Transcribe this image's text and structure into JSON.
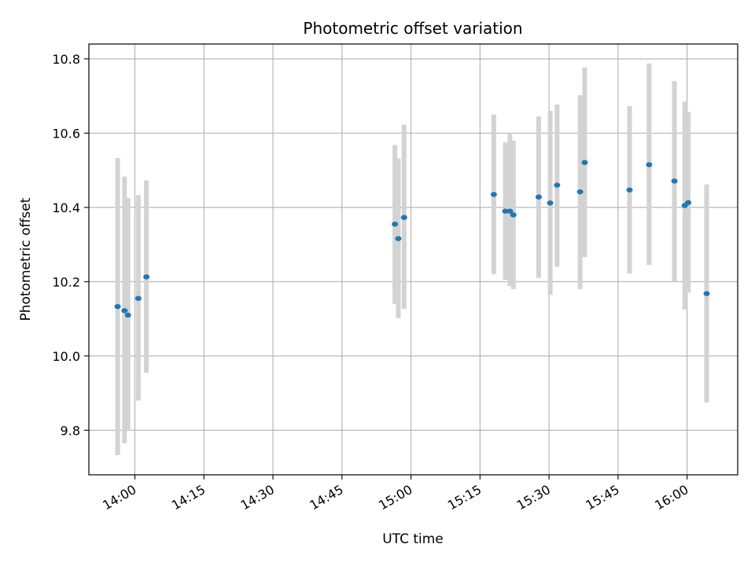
{
  "chart_data": {
    "type": "scatter",
    "title": "Photometric offset variation",
    "xlabel": "UTC time",
    "ylabel": "Photometric offset",
    "x_ticks": [
      "14:00",
      "14:15",
      "14:30",
      "14:45",
      "15:00",
      "15:15",
      "15:30",
      "15:45",
      "16:00"
    ],
    "y_ticks": [
      "9.8",
      "10.0",
      "10.2",
      "10.4",
      "10.6",
      "10.8"
    ],
    "xlim": [
      "13:50",
      "16:11"
    ],
    "ylim": [
      9.68,
      10.84
    ],
    "grid": true,
    "point_color": "#1f77b4",
    "errorbar_color": "#d3d3d3",
    "points": [
      {
        "x": "13:56:15",
        "y": 10.133,
        "err_low": 9.733,
        "err_high": 10.533
      },
      {
        "x": "13:57:45",
        "y": 10.122,
        "err_low": 9.765,
        "err_high": 10.483
      },
      {
        "x": "13:58:30",
        "y": 10.11,
        "err_low": 9.798,
        "err_high": 10.425
      },
      {
        "x": "14:00:45",
        "y": 10.155,
        "err_low": 9.88,
        "err_high": 10.433
      },
      {
        "x": "14:02:30",
        "y": 10.213,
        "err_low": 9.955,
        "err_high": 10.473
      },
      {
        "x": "14:56:30",
        "y": 10.355,
        "err_low": 10.14,
        "err_high": 10.568
      },
      {
        "x": "14:57:15",
        "y": 10.316,
        "err_low": 10.102,
        "err_high": 10.532
      },
      {
        "x": "14:58:30",
        "y": 10.373,
        "err_low": 10.127,
        "err_high": 10.623
      },
      {
        "x": "15:18:00",
        "y": 10.435,
        "err_low": 10.22,
        "err_high": 10.65
      },
      {
        "x": "15:20:30",
        "y": 10.39,
        "err_low": 10.205,
        "err_high": 10.575
      },
      {
        "x": "15:21:30",
        "y": 10.39,
        "err_low": 10.188,
        "err_high": 10.598
      },
      {
        "x": "15:22:15",
        "y": 10.38,
        "err_low": 10.18,
        "err_high": 10.58
      },
      {
        "x": "15:27:45",
        "y": 10.428,
        "err_low": 10.21,
        "err_high": 10.645
      },
      {
        "x": "15:30:15",
        "y": 10.412,
        "err_low": 10.165,
        "err_high": 10.66
      },
      {
        "x": "15:31:45",
        "y": 10.46,
        "err_low": 10.24,
        "err_high": 10.677
      },
      {
        "x": "15:36:45",
        "y": 10.442,
        "err_low": 10.18,
        "err_high": 10.702
      },
      {
        "x": "15:37:45",
        "y": 10.521,
        "err_low": 10.266,
        "err_high": 10.777
      },
      {
        "x": "15:47:30",
        "y": 10.447,
        "err_low": 10.222,
        "err_high": 10.673
      },
      {
        "x": "15:51:45",
        "y": 10.515,
        "err_low": 10.245,
        "err_high": 10.788
      },
      {
        "x": "15:57:15",
        "y": 10.471,
        "err_low": 10.2,
        "err_high": 10.74
      },
      {
        "x": "15:59:30",
        "y": 10.405,
        "err_low": 10.125,
        "err_high": 10.685
      },
      {
        "x": "16:00:15",
        "y": 10.413,
        "err_low": 10.17,
        "err_high": 10.657
      },
      {
        "x": "16:04:15",
        "y": 10.168,
        "err_low": 9.875,
        "err_high": 10.462
      }
    ]
  }
}
